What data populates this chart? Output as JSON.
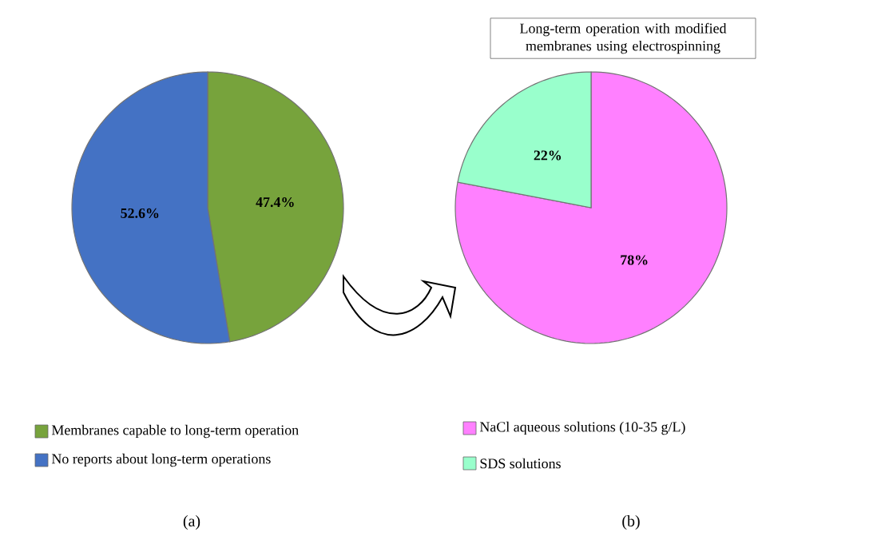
{
  "chart_data": [
    {
      "type": "pie",
      "categories": [
        "Membranes capable to long-term operation",
        "No reports about long-term operations"
      ],
      "values": [
        47.4,
        52.6
      ],
      "value_labels": [
        "47.4%",
        "52.6%"
      ],
      "colors": [
        "#77a33c",
        "#4472c4"
      ],
      "legend": "bottom",
      "annotations": [
        "(a)"
      ]
    },
    {
      "type": "pie",
      "title": "Long-term operation with modified membranes using electrospinning",
      "categories": [
        "NaCl aqueous solutions (10-35 g/L)",
        "SDS solutions"
      ],
      "values": [
        78,
        22
      ],
      "value_labels": [
        "78%",
        "22%"
      ],
      "colors": [
        "#ff80ff",
        "#99ffcc"
      ],
      "legend": "bottom",
      "annotations": [
        "(b)"
      ]
    }
  ]
}
